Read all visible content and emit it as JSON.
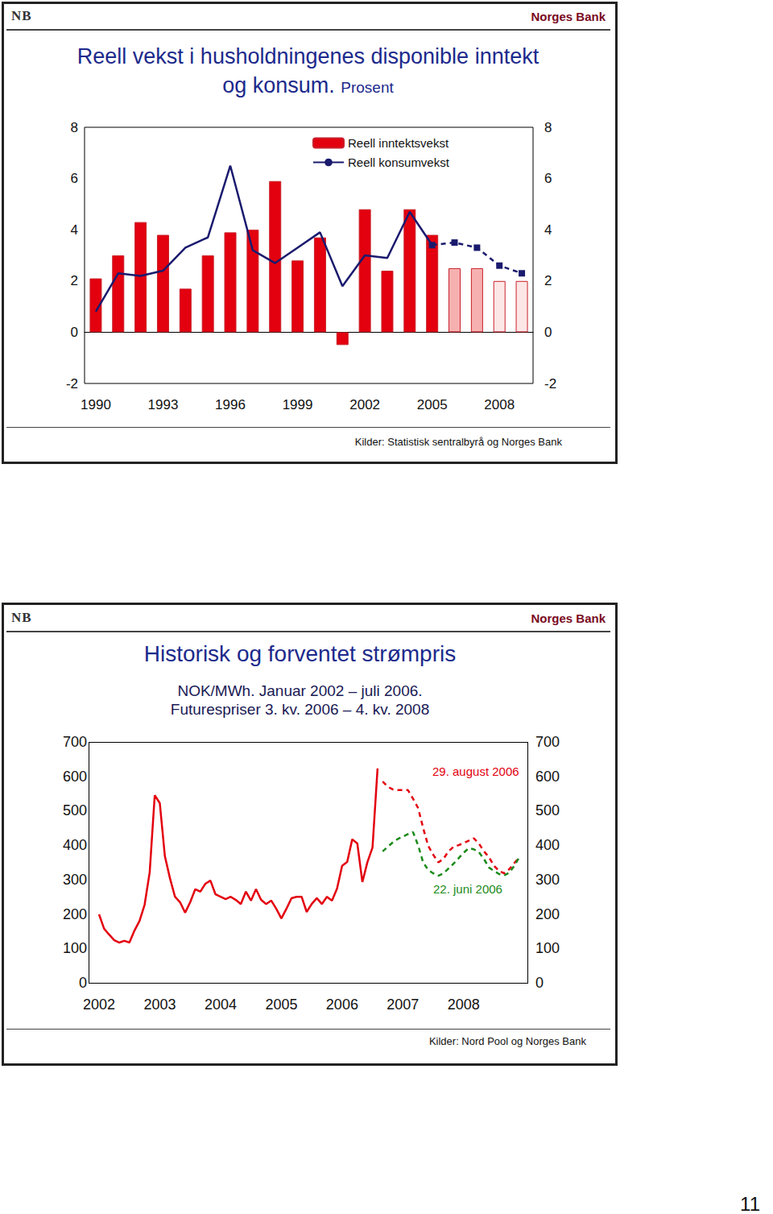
{
  "logo": "NB",
  "brand": "Norges Bank",
  "page_number": "11",
  "chart_data": [
    {
      "type": "bar",
      "title": "Reell vekst i husholdningenes disponible inntekt og konsum.",
      "subtitle": "Prosent",
      "source": "Kilder: Statistisk sentralbyrå og Norges Bank",
      "categories": [
        "1990",
        null,
        null,
        "1993",
        null,
        null,
        "1996",
        null,
        null,
        "1999",
        null,
        null,
        "2002",
        null,
        null,
        "2005",
        null,
        null,
        "2008",
        null
      ],
      "series": [
        {
          "name": "Reell inntektsvekst",
          "type": "bar",
          "colors": [
            "#e3000f",
            "#e3000f",
            "#e3000f",
            "#e3000f",
            "#e3000f",
            "#e3000f",
            "#e3000f",
            "#e3000f",
            "#e3000f",
            "#e3000f",
            "#e3000f",
            "#e3000f",
            "#e3000f",
            "#e3000f",
            "#e3000f",
            "#e3000f",
            "#f6b0b0",
            "#f6b0b0",
            "#fde6e6",
            "#fde6e6"
          ],
          "values": [
            2.1,
            3.0,
            4.3,
            3.8,
            1.7,
            3.0,
            3.9,
            4.0,
            5.9,
            2.8,
            3.7,
            -0.5,
            4.8,
            2.4,
            4.8,
            3.8,
            2.5,
            2.5,
            2.0,
            2.0
          ]
        },
        {
          "name": "Reell konsumvekst",
          "type": "line",
          "color": "#1a1a6e",
          "line_style": "solid",
          "values": [
            0.8,
            2.3,
            2.2,
            2.4,
            3.3,
            3.7,
            6.5,
            3.2,
            2.7,
            3.3,
            3.9,
            1.8,
            3.0,
            2.9,
            4.7,
            3.4,
            null,
            null,
            null,
            null
          ]
        },
        {
          "type": "line",
          "color": "#1a1a6e",
          "line_style": "dashed",
          "marker": "square",
          "values": [
            null,
            null,
            null,
            null,
            null,
            null,
            null,
            null,
            null,
            null,
            null,
            null,
            null,
            null,
            null,
            3.4,
            3.5,
            3.3,
            2.6,
            2.3
          ]
        }
      ],
      "ylim": [
        -2,
        8
      ],
      "yticks": [
        -2,
        0,
        2,
        4,
        6,
        8
      ],
      "grid": false,
      "legend": "upper center"
    },
    {
      "type": "line",
      "title": "Historisk og forventet strømpris",
      "subtitle": "NOK/MWh. Januar 2002 – juli 2006.\nFuturespriser 3. kv. 2006 – 4. kv. 2008",
      "source": "Kilder: Nord Pool og Norges Bank",
      "categories": [
        "2002",
        null,
        null,
        null,
        null,
        null,
        null,
        null,
        null,
        null,
        null,
        null,
        "2003",
        null,
        null,
        null,
        null,
        null,
        null,
        null,
        null,
        null,
        null,
        null,
        "2004",
        null,
        null,
        null,
        null,
        null,
        null,
        null,
        null,
        null,
        null,
        null,
        "2005",
        null,
        null,
        null,
        null,
        null,
        null,
        null,
        null,
        null,
        null,
        null,
        "2006",
        null,
        null,
        null,
        null,
        null,
        null,
        null,
        null,
        null,
        null,
        null,
        "2007",
        null,
        null,
        null,
        null,
        null,
        null,
        null,
        null,
        null,
        null,
        null,
        "2008",
        null,
        null,
        null,
        null,
        null,
        null,
        null,
        null,
        null,
        null,
        null
      ],
      "series": [
        {
          "color": "#e3000f",
          "line_style": "solid",
          "values": [
            199,
            157,
            140,
            124,
            117,
            122,
            117,
            152,
            180,
            227,
            321,
            545,
            522,
            368,
            304,
            250,
            234,
            204,
            234,
            272,
            265,
            288,
            297,
            257,
            250,
            243,
            250,
            241,
            229,
            265,
            239,
            272,
            241,
            229,
            239,
            215,
            187,
            215,
            246,
            250,
            250,
            206,
            229,
            246,
            229,
            250,
            239,
            274,
            340,
            351,
            417,
            405,
            293,
            351,
            393,
            623,
            null,
            null,
            null,
            null,
            null,
            null,
            null,
            null,
            null,
            null,
            null,
            null,
            null,
            null,
            null,
            null,
            null,
            null,
            null,
            null,
            null,
            null,
            null,
            null,
            null,
            null,
            null,
            null
          ]
        },
        {
          "name": "29. august 2006",
          "color": "#e3000f",
          "line_style": "dashed",
          "values": [
            null,
            null,
            null,
            null,
            null,
            null,
            null,
            null,
            null,
            null,
            null,
            null,
            null,
            null,
            null,
            null,
            null,
            null,
            null,
            null,
            null,
            null,
            null,
            null,
            null,
            null,
            null,
            null,
            null,
            null,
            null,
            null,
            null,
            null,
            null,
            null,
            null,
            null,
            null,
            null,
            null,
            null,
            null,
            null,
            null,
            null,
            null,
            null,
            null,
            null,
            null,
            null,
            null,
            null,
            null,
            null,
            585,
            570,
            562,
            560,
            560,
            560,
            535,
            508,
            450,
            398,
            372,
            350,
            360,
            382,
            395,
            400,
            406,
            413,
            420,
            405,
            382,
            365,
            340,
            325,
            318,
            330,
            348,
            365
          ]
        },
        {
          "name": "22. juni 2006",
          "color": "#1a8a1a",
          "line_style": "dashed",
          "values": [
            null,
            null,
            null,
            null,
            null,
            null,
            null,
            null,
            null,
            null,
            null,
            null,
            null,
            null,
            null,
            null,
            null,
            null,
            null,
            null,
            null,
            null,
            null,
            null,
            null,
            null,
            null,
            null,
            null,
            null,
            null,
            null,
            null,
            null,
            null,
            null,
            null,
            null,
            null,
            null,
            null,
            null,
            null,
            null,
            null,
            null,
            null,
            null,
            null,
            null,
            null,
            null,
            null,
            null,
            null,
            null,
            382,
            395,
            408,
            418,
            425,
            432,
            438,
            400,
            350,
            328,
            318,
            311,
            318,
            332,
            346,
            362,
            378,
            391,
            388,
            380,
            360,
            335,
            325,
            316,
            312,
            320,
            340,
            365
          ]
        }
      ],
      "ylim": [
        0,
        700
      ],
      "yticks": [
        0,
        100,
        200,
        300,
        400,
        500,
        600,
        700
      ],
      "grid": false
    }
  ]
}
